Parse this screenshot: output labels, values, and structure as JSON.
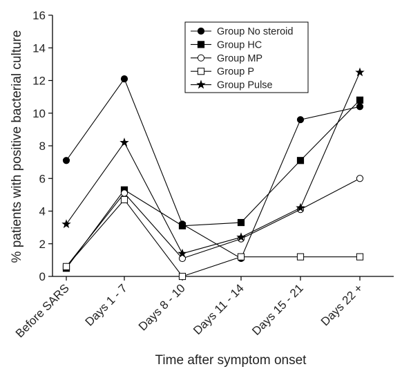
{
  "chart_data": {
    "type": "line",
    "xlabel": "Time after symptom onset",
    "ylabel": "% patients with positive bacterial culture",
    "categories": [
      "Before SARS",
      "Days 1 - 7",
      "Days 8 - 10",
      "Days 11 - 14",
      "Days 15 - 21",
      "Days 22 +"
    ],
    "ylim": [
      0,
      16
    ],
    "yticks": [
      0,
      2,
      4,
      6,
      8,
      10,
      12,
      14,
      16
    ],
    "grid": false,
    "legend_position": "top-right",
    "series": [
      {
        "name": "Group No steroid",
        "marker": "filled-circle",
        "values": [
          7.1,
          12.1,
          3.2,
          1.1,
          9.6,
          10.4
        ]
      },
      {
        "name": "Group HC",
        "marker": "filled-square",
        "values": [
          0.5,
          5.3,
          3.1,
          3.3,
          7.1,
          10.8
        ]
      },
      {
        "name": "Group MP",
        "marker": "open-circle",
        "values": [
          0.6,
          5.1,
          1.1,
          2.3,
          4.1,
          6.0
        ]
      },
      {
        "name": "Group P",
        "marker": "open-square",
        "values": [
          0.6,
          4.7,
          0.0,
          1.2,
          1.2,
          1.2
        ]
      },
      {
        "name": "Group Pulse",
        "marker": "star",
        "values": [
          3.2,
          8.2,
          1.4,
          2.4,
          4.2,
          12.5
        ]
      }
    ]
  }
}
